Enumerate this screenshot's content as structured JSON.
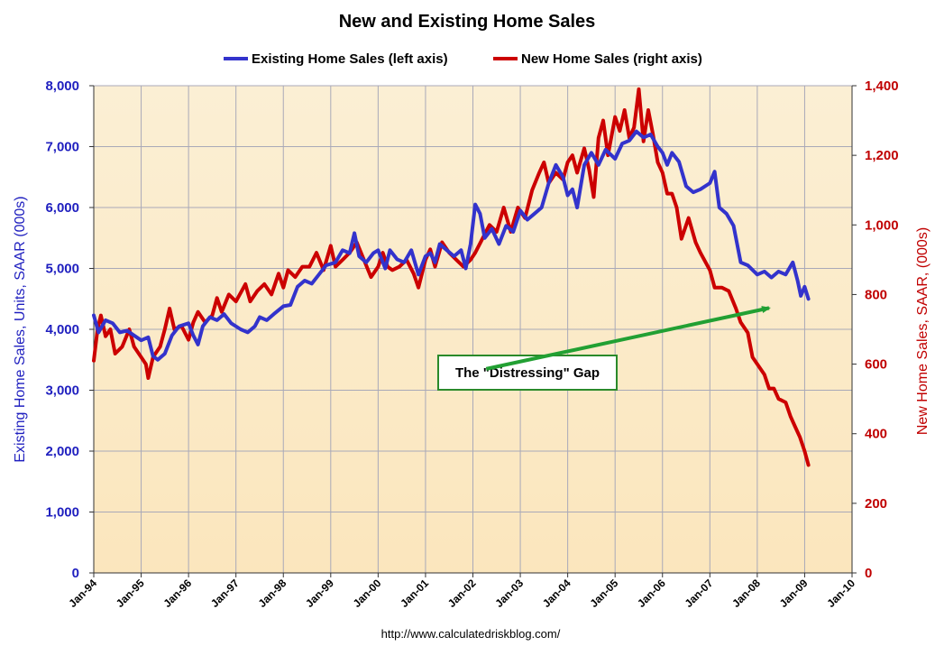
{
  "chart_data": {
    "type": "line",
    "title": "New and Existing Home Sales",
    "x_tick_labels": [
      "Jan-94",
      "Jan-95",
      "Jan-96",
      "Jan-97",
      "Jan-98",
      "Jan-99",
      "Jan-00",
      "Jan-01",
      "Jan-02",
      "Jan-03",
      "Jan-04",
      "Jan-05",
      "Jan-06",
      "Jan-07",
      "Jan-08",
      "Jan-09",
      "Jan-10"
    ],
    "x_range": [
      1994,
      2010
    ],
    "ylabel_left": "Existing Home Sales, Units, SAAR (000s)",
    "ylabel_right": "New Home Sales, SAAR, (000s)",
    "ylim_left": [
      0,
      8000
    ],
    "ylim_right": [
      0,
      1400
    ],
    "y_ticks_left": [
      "0",
      "1,000",
      "2,000",
      "3,000",
      "4,000",
      "5,000",
      "6,000",
      "7,000",
      "8,000"
    ],
    "y_ticks_right": [
      "0",
      "200",
      "400",
      "600",
      "800",
      "1,000",
      "1,200",
      "1,400"
    ],
    "grid": true,
    "legend_position": "top",
    "series": [
      {
        "name": "Existing Home Sales (left axis)",
        "axis": "left",
        "color": "#3333cc",
        "points": [
          [
            1994.0,
            4230
          ],
          [
            1994.1,
            3950
          ],
          [
            1994.25,
            4150
          ],
          [
            1994.4,
            4100
          ],
          [
            1994.55,
            3950
          ],
          [
            1994.7,
            3980
          ],
          [
            1994.85,
            3900
          ],
          [
            1995.0,
            3820
          ],
          [
            1995.15,
            3870
          ],
          [
            1995.25,
            3560
          ],
          [
            1995.35,
            3500
          ],
          [
            1995.5,
            3600
          ],
          [
            1995.65,
            3900
          ],
          [
            1995.8,
            4050
          ],
          [
            1996.0,
            4100
          ],
          [
            1996.1,
            3900
          ],
          [
            1996.2,
            3750
          ],
          [
            1996.3,
            4050
          ],
          [
            1996.45,
            4200
          ],
          [
            1996.6,
            4150
          ],
          [
            1996.75,
            4250
          ],
          [
            1996.9,
            4100
          ],
          [
            1997.1,
            4000
          ],
          [
            1997.25,
            3950
          ],
          [
            1997.4,
            4050
          ],
          [
            1997.5,
            4200
          ],
          [
            1997.65,
            4150
          ],
          [
            1997.8,
            4250
          ],
          [
            1998.0,
            4380
          ],
          [
            1998.15,
            4400
          ],
          [
            1998.3,
            4700
          ],
          [
            1998.45,
            4800
          ],
          [
            1998.6,
            4750
          ],
          [
            1998.75,
            4900
          ],
          [
            1998.9,
            5050
          ],
          [
            1999.1,
            5100
          ],
          [
            1999.25,
            5300
          ],
          [
            1999.4,
            5250
          ],
          [
            1999.5,
            5580
          ],
          [
            1999.6,
            5200
          ],
          [
            1999.75,
            5100
          ],
          [
            1999.9,
            5250
          ],
          [
            2000.0,
            5300
          ],
          [
            2000.15,
            5000
          ],
          [
            2000.25,
            5300
          ],
          [
            2000.4,
            5150
          ],
          [
            2000.55,
            5100
          ],
          [
            2000.7,
            5300
          ],
          [
            2000.85,
            4900
          ],
          [
            2001.0,
            5200
          ],
          [
            2001.1,
            5250
          ],
          [
            2001.2,
            5100
          ],
          [
            2001.3,
            5400
          ],
          [
            2001.45,
            5300
          ],
          [
            2001.6,
            5200
          ],
          [
            2001.75,
            5300
          ],
          [
            2001.85,
            5000
          ],
          [
            2001.95,
            5400
          ],
          [
            2002.05,
            6050
          ],
          [
            2002.15,
            5900
          ],
          [
            2002.25,
            5500
          ],
          [
            2002.4,
            5650
          ],
          [
            2002.55,
            5400
          ],
          [
            2002.7,
            5700
          ],
          [
            2002.85,
            5600
          ],
          [
            2003.0,
            5950
          ],
          [
            2003.15,
            5800
          ],
          [
            2003.3,
            5900
          ],
          [
            2003.45,
            6000
          ],
          [
            2003.6,
            6400
          ],
          [
            2003.75,
            6700
          ],
          [
            2003.9,
            6500
          ],
          [
            2004.0,
            6200
          ],
          [
            2004.1,
            6300
          ],
          [
            2004.2,
            6000
          ],
          [
            2004.35,
            6700
          ],
          [
            2004.5,
            6900
          ],
          [
            2004.65,
            6700
          ],
          [
            2004.8,
            6950
          ],
          [
            2005.0,
            6800
          ],
          [
            2005.15,
            7050
          ],
          [
            2005.3,
            7100
          ],
          [
            2005.45,
            7250
          ],
          [
            2005.6,
            7150
          ],
          [
            2005.75,
            7200
          ],
          [
            2005.9,
            7000
          ],
          [
            2006.0,
            6900
          ],
          [
            2006.1,
            6700
          ],
          [
            2006.2,
            6900
          ],
          [
            2006.35,
            6750
          ],
          [
            2006.5,
            6350
          ],
          [
            2006.65,
            6250
          ],
          [
            2006.8,
            6300
          ],
          [
            2007.0,
            6400
          ],
          [
            2007.1,
            6590
          ],
          [
            2007.2,
            6000
          ],
          [
            2007.35,
            5900
          ],
          [
            2007.5,
            5700
          ],
          [
            2007.65,
            5100
          ],
          [
            2007.8,
            5050
          ],
          [
            2008.0,
            4900
          ],
          [
            2008.15,
            4950
          ],
          [
            2008.3,
            4850
          ],
          [
            2008.45,
            4950
          ],
          [
            2008.6,
            4900
          ],
          [
            2008.75,
            5100
          ],
          [
            2008.85,
            4800
          ],
          [
            2008.92,
            4550
          ],
          [
            2009.0,
            4700
          ],
          [
            2009.08,
            4500
          ]
        ]
      },
      {
        "name": "New Home Sales (right axis)",
        "axis": "right",
        "color": "#cc0000",
        "points": [
          [
            1994.0,
            610
          ],
          [
            1994.08,
            700
          ],
          [
            1994.15,
            740
          ],
          [
            1994.25,
            680
          ],
          [
            1994.35,
            700
          ],
          [
            1994.45,
            630
          ],
          [
            1994.6,
            650
          ],
          [
            1994.75,
            700
          ],
          [
            1994.85,
            650
          ],
          [
            1995.0,
            620
          ],
          [
            1995.1,
            600
          ],
          [
            1995.15,
            560
          ],
          [
            1995.25,
            620
          ],
          [
            1995.4,
            650
          ],
          [
            1995.5,
            700
          ],
          [
            1995.6,
            760
          ],
          [
            1995.7,
            700
          ],
          [
            1995.85,
            710
          ],
          [
            1996.0,
            670
          ],
          [
            1996.1,
            720
          ],
          [
            1996.2,
            750
          ],
          [
            1996.35,
            720
          ],
          [
            1996.5,
            740
          ],
          [
            1996.6,
            790
          ],
          [
            1996.7,
            750
          ],
          [
            1996.85,
            800
          ],
          [
            1997.0,
            780
          ],
          [
            1997.2,
            830
          ],
          [
            1997.3,
            780
          ],
          [
            1997.45,
            810
          ],
          [
            1997.6,
            830
          ],
          [
            1997.75,
            800
          ],
          [
            1997.9,
            860
          ],
          [
            1998.0,
            820
          ],
          [
            1998.1,
            870
          ],
          [
            1998.25,
            850
          ],
          [
            1998.4,
            880
          ],
          [
            1998.55,
            880
          ],
          [
            1998.7,
            920
          ],
          [
            1998.85,
            870
          ],
          [
            1999.0,
            940
          ],
          [
            1999.1,
            880
          ],
          [
            1999.25,
            900
          ],
          [
            1999.4,
            920
          ],
          [
            1999.55,
            950
          ],
          [
            1999.7,
            900
          ],
          [
            1999.85,
            850
          ],
          [
            2000.0,
            880
          ],
          [
            2000.1,
            920
          ],
          [
            2000.2,
            880
          ],
          [
            2000.3,
            870
          ],
          [
            2000.45,
            880
          ],
          [
            2000.6,
            900
          ],
          [
            2000.75,
            860
          ],
          [
            2000.85,
            820
          ],
          [
            2001.0,
            900
          ],
          [
            2001.1,
            930
          ],
          [
            2001.2,
            880
          ],
          [
            2001.35,
            950
          ],
          [
            2001.5,
            920
          ],
          [
            2001.65,
            900
          ],
          [
            2001.8,
            880
          ],
          [
            2001.95,
            900
          ],
          [
            2002.05,
            920
          ],
          [
            2002.2,
            960
          ],
          [
            2002.35,
            1000
          ],
          [
            2002.5,
            980
          ],
          [
            2002.65,
            1050
          ],
          [
            2002.8,
            980
          ],
          [
            2002.95,
            1050
          ],
          [
            2003.1,
            1020
          ],
          [
            2003.25,
            1100
          ],
          [
            2003.4,
            1150
          ],
          [
            2003.5,
            1180
          ],
          [
            2003.6,
            1120
          ],
          [
            2003.75,
            1150
          ],
          [
            2003.9,
            1130
          ],
          [
            2004.0,
            1180
          ],
          [
            2004.1,
            1200
          ],
          [
            2004.2,
            1150
          ],
          [
            2004.35,
            1220
          ],
          [
            2004.45,
            1160
          ],
          [
            2004.55,
            1080
          ],
          [
            2004.65,
            1250
          ],
          [
            2004.75,
            1300
          ],
          [
            2004.85,
            1200
          ],
          [
            2005.0,
            1310
          ],
          [
            2005.1,
            1270
          ],
          [
            2005.2,
            1330
          ],
          [
            2005.3,
            1250
          ],
          [
            2005.4,
            1280
          ],
          [
            2005.5,
            1390
          ],
          [
            2005.6,
            1240
          ],
          [
            2005.7,
            1330
          ],
          [
            2005.8,
            1260
          ],
          [
            2005.9,
            1180
          ],
          [
            2006.0,
            1150
          ],
          [
            2006.1,
            1090
          ],
          [
            2006.2,
            1090
          ],
          [
            2006.3,
            1050
          ],
          [
            2006.4,
            960
          ],
          [
            2006.55,
            1020
          ],
          [
            2006.7,
            950
          ],
          [
            2006.8,
            920
          ],
          [
            2007.0,
            870
          ],
          [
            2007.1,
            820
          ],
          [
            2007.25,
            820
          ],
          [
            2007.4,
            810
          ],
          [
            2007.55,
            760
          ],
          [
            2007.65,
            720
          ],
          [
            2007.8,
            690
          ],
          [
            2007.9,
            620
          ],
          [
            2008.0,
            600
          ],
          [
            2008.15,
            570
          ],
          [
            2008.25,
            530
          ],
          [
            2008.35,
            530
          ],
          [
            2008.45,
            500
          ],
          [
            2008.6,
            490
          ],
          [
            2008.7,
            450
          ],
          [
            2008.8,
            420
          ],
          [
            2008.9,
            390
          ],
          [
            2009.0,
            350
          ],
          [
            2009.08,
            310
          ]
        ]
      }
    ],
    "annotations": [
      {
        "text": "The \"Distressing\" Gap",
        "arrow_from": [
          2002.28,
          3350
        ],
        "arrow_to": [
          2008.25,
          4350
        ]
      }
    ],
    "footer": "http://www.calculatedriskblog.com/"
  }
}
